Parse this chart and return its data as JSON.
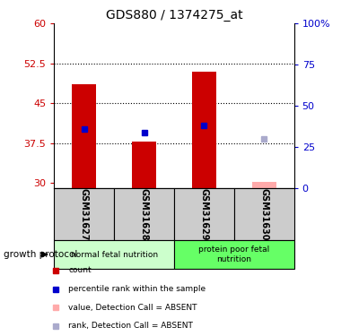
{
  "title": "GDS880 / 1374275_at",
  "samples": [
    "GSM31627",
    "GSM31628",
    "GSM31629",
    "GSM31630"
  ],
  "bar_values": [
    48.5,
    37.8,
    51.0,
    30.15
  ],
  "bar_color": "#cc0000",
  "absent_bar_color": "#ffaaaa",
  "rank_values": [
    40.2,
    39.5,
    40.8,
    null
  ],
  "rank_absent_value": 38.2,
  "rank_color": "#0000cc",
  "rank_absent_color": "#aaaacc",
  "ylim_left": [
    29,
    60
  ],
  "yticks_left": [
    30,
    37.5,
    45,
    52.5,
    60
  ],
  "ytick_labels_left": [
    "30",
    "37.5",
    "45",
    "52.5",
    "60"
  ],
  "ytick_labels_right": [
    "0",
    "25",
    "50",
    "75",
    "100%"
  ],
  "group1_label": "normal fetal nutrition",
  "group2_label": "protein poor fetal\nnutrition",
  "group_label_prefix": "growth protocol",
  "group1_color": "#ccffcc",
  "group2_color": "#66ff66",
  "group_box_color": "#cccccc",
  "legend_items": [
    {
      "label": "count",
      "color": "#cc0000"
    },
    {
      "label": "percentile rank within the sample",
      "color": "#0000cc"
    },
    {
      "label": "value, Detection Call = ABSENT",
      "color": "#ffaaaa"
    },
    {
      "label": "rank, Detection Call = ABSENT",
      "color": "#aaaacc"
    }
  ],
  "bar_width": 0.4,
  "marker_size": 5,
  "base_value": 29,
  "absent_samples": [
    "GSM31630"
  ]
}
